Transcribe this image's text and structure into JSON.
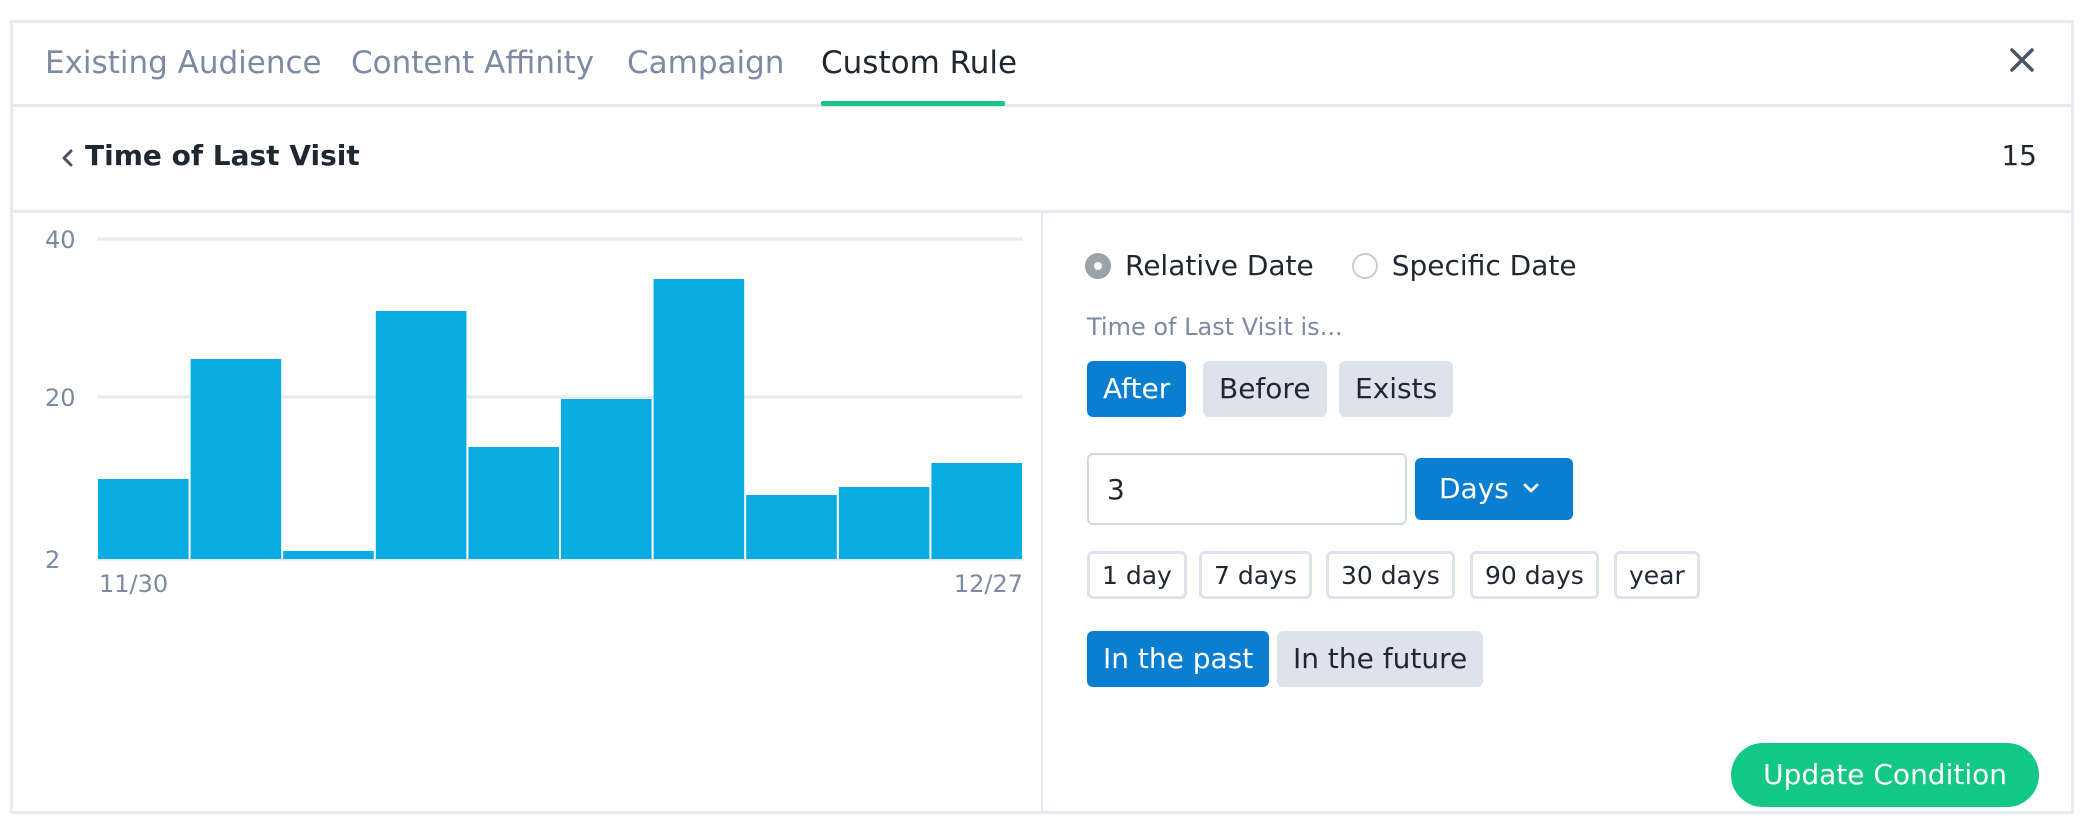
{
  "tabs": [
    {
      "label": "Existing Audience",
      "active": false
    },
    {
      "label": "Content Affinity",
      "active": false
    },
    {
      "label": "Campaign",
      "active": false
    },
    {
      "label": "Custom Rule",
      "active": true
    }
  ],
  "header": {
    "title": "Time of Last Visit",
    "count": "15"
  },
  "chart_data": {
    "type": "bar",
    "values": [
      10,
      25,
      1,
      31,
      14,
      20,
      35,
      8,
      9,
      12
    ],
    "y_ticks": [
      "40",
      "20",
      "2"
    ],
    "x_labels": {
      "start": "11/30",
      "end": "12/27"
    },
    "ylim": [
      0,
      40
    ],
    "grid": true,
    "color": "#0aade2"
  },
  "form": {
    "radio_options": [
      {
        "label": "Relative Date",
        "checked": true
      },
      {
        "label": "Specific Date",
        "checked": false
      }
    ],
    "prompt": "Time of Last Visit is...",
    "comparators": [
      {
        "label": "After",
        "active": true
      },
      {
        "label": "Before",
        "active": false
      },
      {
        "label": "Exists",
        "active": false
      }
    ],
    "amount_value": "3",
    "unit_selected": "Days",
    "presets": [
      "1 day",
      "7 days",
      "30 days",
      "90 days",
      "year"
    ],
    "directions": [
      {
        "label": "In the past",
        "active": true
      },
      {
        "label": "In the future",
        "active": false
      }
    ],
    "update_label": "Update Condition"
  },
  "colors": {
    "accent": "#0a7fd1",
    "success": "#13c887",
    "tab_underline": "#1bc48a"
  }
}
